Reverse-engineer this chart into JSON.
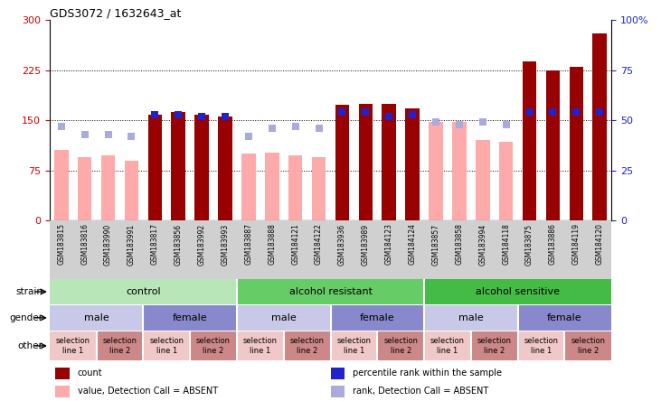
{
  "title": "GDS3072 / 1632643_at",
  "samples": [
    "GSM183815",
    "GSM183816",
    "GSM183990",
    "GSM183991",
    "GSM183817",
    "GSM183856",
    "GSM183992",
    "GSM183993",
    "GSM183887",
    "GSM183888",
    "GSM184121",
    "GSM184122",
    "GSM183936",
    "GSM183989",
    "GSM184123",
    "GSM184124",
    "GSM183857",
    "GSM183858",
    "GSM183994",
    "GSM184118",
    "GSM183875",
    "GSM183886",
    "GSM184119",
    "GSM184120"
  ],
  "count_values": [
    105,
    95,
    98,
    90,
    158,
    162,
    158,
    155,
    100,
    102,
    97,
    95,
    173,
    175,
    175,
    168,
    148,
    148,
    120,
    118,
    238,
    225,
    230,
    280
  ],
  "count_absent": [
    true,
    true,
    true,
    true,
    false,
    false,
    false,
    false,
    true,
    true,
    true,
    true,
    false,
    false,
    false,
    false,
    true,
    true,
    true,
    true,
    false,
    false,
    false,
    false
  ],
  "rank_pct": [
    47,
    43,
    43,
    42,
    53,
    53,
    52,
    52,
    42,
    46,
    47,
    46,
    54,
    54,
    52,
    53,
    49,
    48,
    49,
    48,
    54,
    54,
    54,
    54
  ],
  "rank_absent": [
    true,
    true,
    true,
    true,
    false,
    false,
    false,
    false,
    true,
    true,
    true,
    true,
    false,
    false,
    false,
    false,
    true,
    true,
    true,
    true,
    false,
    false,
    false,
    false
  ],
  "strain_groups": [
    {
      "label": "control",
      "start": 0,
      "end": 8,
      "color": "#b8e6b8"
    },
    {
      "label": "alcohol resistant",
      "start": 8,
      "end": 16,
      "color": "#66cc66"
    },
    {
      "label": "alcohol sensitive",
      "start": 16,
      "end": 24,
      "color": "#44bb44"
    }
  ],
  "gender_groups": [
    {
      "label": "male",
      "start": 0,
      "end": 4,
      "color": "#c8c8e8"
    },
    {
      "label": "female",
      "start": 4,
      "end": 8,
      "color": "#8888cc"
    },
    {
      "label": "male",
      "start": 8,
      "end": 12,
      "color": "#c8c8e8"
    },
    {
      "label": "female",
      "start": 12,
      "end": 16,
      "color": "#8888cc"
    },
    {
      "label": "male",
      "start": 16,
      "end": 20,
      "color": "#c8c8e8"
    },
    {
      "label": "female",
      "start": 20,
      "end": 24,
      "color": "#8888cc"
    }
  ],
  "other_groups": [
    {
      "label": "selection\nline 1",
      "start": 0,
      "end": 2,
      "color": "#f0c8c8"
    },
    {
      "label": "selection\nline 2",
      "start": 2,
      "end": 4,
      "color": "#cc8888"
    },
    {
      "label": "selection\nline 1",
      "start": 4,
      "end": 6,
      "color": "#f0c8c8"
    },
    {
      "label": "selection\nline 2",
      "start": 6,
      "end": 8,
      "color": "#cc8888"
    },
    {
      "label": "selection\nline 1",
      "start": 8,
      "end": 10,
      "color": "#f0c8c8"
    },
    {
      "label": "selection\nline 2",
      "start": 10,
      "end": 12,
      "color": "#cc8888"
    },
    {
      "label": "selection\nline 1",
      "start": 12,
      "end": 14,
      "color": "#f0c8c8"
    },
    {
      "label": "selection\nline 2",
      "start": 14,
      "end": 16,
      "color": "#cc8888"
    },
    {
      "label": "selection\nline 1",
      "start": 16,
      "end": 18,
      "color": "#f0c8c8"
    },
    {
      "label": "selection\nline 2",
      "start": 18,
      "end": 20,
      "color": "#cc8888"
    },
    {
      "label": "selection\nline 1",
      "start": 20,
      "end": 22,
      "color": "#f0c8c8"
    },
    {
      "label": "selection\nline 2",
      "start": 22,
      "end": 24,
      "color": "#cc8888"
    }
  ],
  "ylim_left": [
    0,
    300
  ],
  "ylim_right": [
    0,
    100
  ],
  "yticks_left": [
    0,
    75,
    150,
    225,
    300
  ],
  "yticks_right": [
    0,
    25,
    50,
    75,
    100
  ],
  "bar_width": 0.6,
  "count_color_present": "#990000",
  "count_color_absent": "#ffaaaa",
  "rank_color_present": "#2222cc",
  "rank_color_absent": "#aaaadd",
  "legend_items": [
    {
      "label": "count",
      "color": "#990000"
    },
    {
      "label": "percentile rank within the sample",
      "color": "#2222cc"
    },
    {
      "label": "value, Detection Call = ABSENT",
      "color": "#ffaaaa"
    },
    {
      "label": "rank, Detection Call = ABSENT",
      "color": "#aaaadd"
    }
  ]
}
